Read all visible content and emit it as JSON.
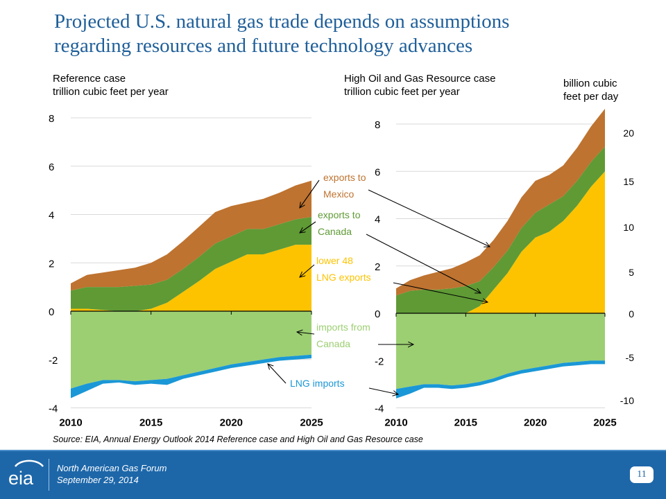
{
  "title": {
    "line1": "Projected U.S. natural gas trade depends on assumptions",
    "line2": "regarding resources and future technology advances"
  },
  "colors": {
    "exports_to_mexico": "#be7330",
    "exports_to_canada": "#5f9a35",
    "lower_48_lng_exports": "#fdc300",
    "imports_from_canada": "#9ccf72",
    "lng_imports": "#1a97d6",
    "title": "#1f5f99",
    "footer": "#1d67a9"
  },
  "annotations": [
    {
      "text": [
        "exports to",
        "Mexico"
      ],
      "color": "#be7330"
    },
    {
      "text": [
        "exports to",
        "Canada"
      ],
      "color": "#5f9a35"
    },
    {
      "text": [
        "lower 48",
        "LNG exports"
      ],
      "color": "#fdc300"
    },
    {
      "text": [
        "imports from",
        "Canada"
      ],
      "color": "#9ccf72"
    },
    {
      "text": [
        "LNG imports"
      ],
      "color": "#1a97d6"
    }
  ],
  "secondary_axis": {
    "label": [
      "billion cubic",
      "feet per day"
    ],
    "ticks": [
      "20",
      "15",
      "10",
      "5",
      "0",
      "-5",
      "-10"
    ]
  },
  "chart_data": [
    {
      "type": "area",
      "title": "Reference case",
      "ylabel": "trillion cubic feet per year",
      "x": [
        2010,
        2011,
        2012,
        2013,
        2014,
        2015,
        2016,
        2017,
        2018,
        2019,
        2020,
        2021,
        2022,
        2023,
        2024,
        2025
      ],
      "xticks": [
        "2010",
        "2015",
        "2020",
        "2025"
      ],
      "yticks": [
        "8",
        "6",
        "4",
        "2",
        "0",
        "-2",
        "-4"
      ],
      "ylim": [
        -4,
        8
      ],
      "stacked": true,
      "grid": true,
      "series": [
        {
          "name": "lower 48 LNG exports",
          "values": [
            0.1,
            0.1,
            0.05,
            0.0,
            0.0,
            0.1,
            0.35,
            0.8,
            1.25,
            1.75,
            2.05,
            2.35,
            2.35,
            2.55,
            2.75,
            2.75
          ]
        },
        {
          "name": "exports to Canada",
          "values": [
            0.75,
            0.9,
            0.95,
            1.0,
            1.05,
            1.0,
            0.95,
            0.95,
            1.0,
            1.05,
            1.05,
            1.05,
            1.05,
            1.05,
            1.05,
            1.15
          ]
        },
        {
          "name": "exports to Mexico",
          "values": [
            0.3,
            0.5,
            0.6,
            0.7,
            0.75,
            0.9,
            1.05,
            1.15,
            1.25,
            1.3,
            1.25,
            1.1,
            1.25,
            1.3,
            1.4,
            1.5
          ]
        },
        {
          "name": "imports from Canada",
          "values": [
            -3.2,
            -3.0,
            -2.85,
            -2.85,
            -2.9,
            -2.85,
            -2.8,
            -2.65,
            -2.5,
            -2.35,
            -2.2,
            -2.1,
            -2.0,
            -1.9,
            -1.85,
            -1.8
          ]
        },
        {
          "name": "LNG imports",
          "values": [
            -0.4,
            -0.3,
            -0.15,
            -0.1,
            -0.15,
            -0.15,
            -0.25,
            -0.15,
            -0.15,
            -0.15,
            -0.15,
            -0.15,
            -0.15,
            -0.15,
            -0.15,
            -0.15
          ]
        }
      ]
    },
    {
      "type": "area",
      "title": "High Oil and Gas Resource case",
      "ylabel": "trillion cubic feet per year",
      "x": [
        2010,
        2011,
        2012,
        2013,
        2014,
        2015,
        2016,
        2017,
        2018,
        2019,
        2020,
        2021,
        2022,
        2023,
        2024,
        2025
      ],
      "xticks": [
        "2010",
        "2015",
        "2020",
        "2025"
      ],
      "yticks": [
        "8",
        "6",
        "4",
        "2",
        "0",
        "-2",
        "-4"
      ],
      "ylim": [
        -4,
        8
      ],
      "stacked": true,
      "grid": true,
      "series": [
        {
          "name": "lower 48 LNG exports",
          "values": [
            0.0,
            0.0,
            0.0,
            0.0,
            0.0,
            0.0,
            0.3,
            1.0,
            1.7,
            2.6,
            3.2,
            3.45,
            3.9,
            4.55,
            5.35,
            6.0
          ]
        },
        {
          "name": "exports to Canada",
          "values": [
            0.75,
            0.95,
            1.0,
            1.0,
            1.05,
            1.15,
            1.05,
            0.95,
            0.95,
            1.0,
            1.05,
            1.15,
            1.05,
            1.05,
            1.05,
            1.05
          ]
        },
        {
          "name": "exports to Mexico",
          "values": [
            0.3,
            0.45,
            0.6,
            0.75,
            0.85,
            1.0,
            1.1,
            1.15,
            1.25,
            1.3,
            1.35,
            1.25,
            1.3,
            1.4,
            1.5,
            1.6
          ]
        },
        {
          "name": "imports from Canada",
          "values": [
            -3.2,
            -3.1,
            -3.0,
            -3.0,
            -3.05,
            -3.0,
            -2.9,
            -2.75,
            -2.55,
            -2.4,
            -2.3,
            -2.2,
            -2.1,
            -2.05,
            -2.0,
            -2.0
          ]
        },
        {
          "name": "LNG imports",
          "values": [
            -0.4,
            -0.3,
            -0.15,
            -0.15,
            -0.15,
            -0.15,
            -0.15,
            -0.15,
            -0.15,
            -0.15,
            -0.15,
            -0.15,
            -0.15,
            -0.15,
            -0.15,
            -0.15
          ]
        }
      ]
    }
  ],
  "source": "Source: EIA, Annual Energy Outlook 2014 Reference case and High Oil and Gas Resource case",
  "footer": {
    "logo_text": "eia",
    "line1": "North American Gas Forum",
    "line2": "September 29, 2014",
    "page_number": "11"
  }
}
